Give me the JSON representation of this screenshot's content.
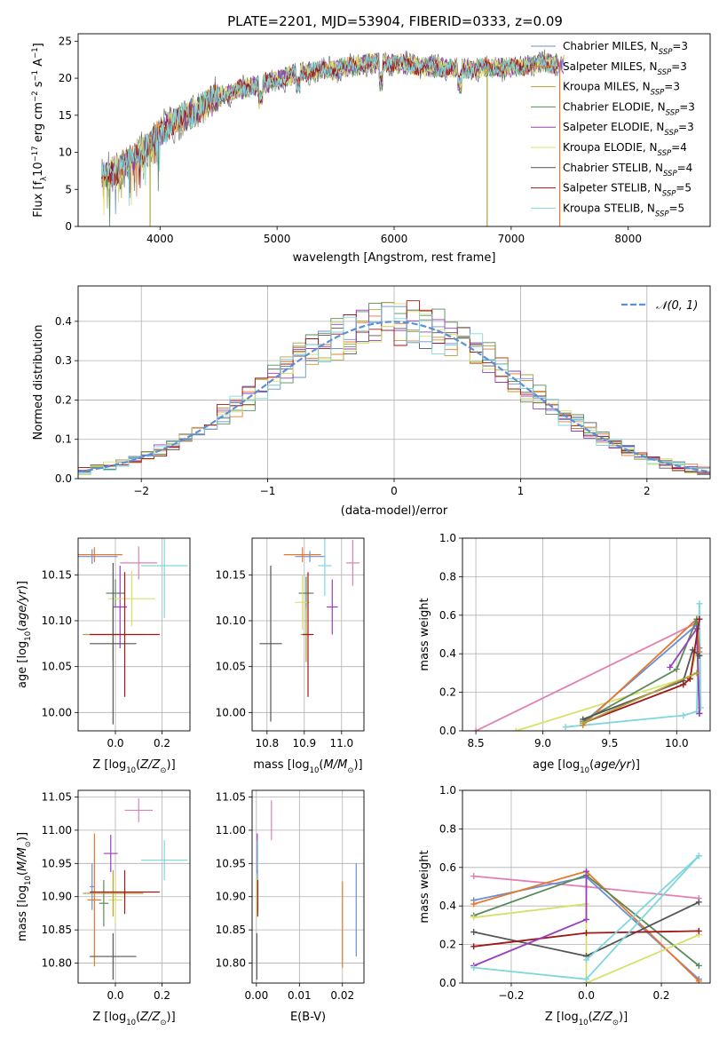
{
  "title": "PLATE=2201, MJD=53904, FIBERID=0333, z=0.09",
  "palette": [
    "#6b8fd6",
    "#e6782d",
    "#b3a13d",
    "#5a8a5a",
    "#9a3fb8",
    "#d8e06a",
    "#555555",
    "#a01818",
    "#7fd6dc",
    "#e27fb0"
  ],
  "chart_data": [
    {
      "id": "spectrum",
      "type": "line",
      "title": "PLATE=2201, MJD=53904, FIBERID=0333, z=0.09",
      "xlabel": "wavelength [Angstrom, rest frame]",
      "ylabel": "Flux [f_λ 10^-17 erg cm^-2 s^-1 A^-1]",
      "xlim": [
        3300,
        8700
      ],
      "ylim": [
        0,
        26
      ],
      "xticks": [
        4000,
        5000,
        6000,
        7000,
        8000
      ],
      "yticks": [
        0,
        5,
        10,
        15,
        20,
        25
      ],
      "grid": false,
      "legend_position": "top-right",
      "continuum": {
        "x": [
          3500,
          3700,
          3900,
          4100,
          4300,
          4500,
          4800,
          5000,
          5200,
          5500,
          5800,
          6000,
          6300,
          6600,
          7000,
          7300,
          7500
        ],
        "y": [
          6.5,
          8.5,
          11,
          14,
          15.5,
          17.5,
          19,
          19.7,
          20.8,
          21.2,
          22,
          22,
          21.5,
          21.3,
          21.5,
          22,
          22
        ]
      },
      "drops": [
        {
          "x": 3915,
          "series": 2
        },
        {
          "x": 6795,
          "series": 2
        },
        {
          "x": 7415,
          "series": 1
        }
      ],
      "series": [
        {
          "name": "Chabrier MILES, N",
          "sub": "SSP",
          "suffix": "=3",
          "color_index": 0
        },
        {
          "name": "Salpeter MILES, N",
          "sub": "SSP",
          "suffix": "=3",
          "color_index": 1
        },
        {
          "name": "Kroupa MILES, N",
          "sub": "SSP",
          "suffix": "=3",
          "color_index": 2
        },
        {
          "name": "Chabrier ELODIE, N",
          "sub": "SSP",
          "suffix": "=3",
          "color_index": 3
        },
        {
          "name": "Salpeter ELODIE, N",
          "sub": "SSP",
          "suffix": "=3",
          "color_index": 4
        },
        {
          "name": "Kroupa ELODIE, N",
          "sub": "SSP",
          "suffix": "=4",
          "color_index": 5
        },
        {
          "name": "Chabrier STELIB, N",
          "sub": "SSP",
          "suffix": "=4",
          "color_index": 6
        },
        {
          "name": "Salpeter STELIB, N",
          "sub": "SSP",
          "suffix": "=5",
          "color_index": 7
        },
        {
          "name": "Kroupa STELIB, N",
          "sub": "SSP",
          "suffix": "=5",
          "color_index": 8
        }
      ]
    },
    {
      "id": "residuals",
      "type": "histogram",
      "xlabel": "(data-model)/error",
      "ylabel": "Normed distribution",
      "xlim": [
        -2.5,
        2.5
      ],
      "ylim": [
        0,
        0.49
      ],
      "xticks": [
        -2,
        -1,
        0,
        1,
        2
      ],
      "yticks": [
        0.0,
        0.1,
        0.2,
        0.3,
        0.4
      ],
      "grid": true,
      "bin_width": 0.1,
      "series_count": 9,
      "reference_label": "𝒩(0, 1)",
      "reference_color": "#5b8fd6",
      "legend_position": "top-right"
    },
    {
      "id": "age-vs-Z",
      "type": "errorbar",
      "xlabel": "Z [log10(Z/Z⊙)]",
      "ylabel": "age [log10(age/yr)]",
      "xlim": [
        -0.16,
        0.32
      ],
      "ylim": [
        9.98,
        10.19
      ],
      "xticks": [
        0.0,
        0.2
      ],
      "yticks": [
        10.0,
        10.05,
        10.1,
        10.15
      ],
      "grid": true,
      "points": [
        {
          "x": -0.1,
          "xerr": 0.11,
          "y": 10.17,
          "yerr": 0.008,
          "color_index": 0
        },
        {
          "x": -0.09,
          "xerr": 0.12,
          "y": 10.172,
          "yerr": 0.008,
          "color_index": 1
        },
        {
          "x": 0.0,
          "xerr": 0.04,
          "y": 10.13,
          "yerr": 0.015,
          "color_index": 3
        },
        {
          "x": 0.02,
          "xerr": 0.03,
          "y": 10.115,
          "yerr": 0.045,
          "color_index": 4
        },
        {
          "x": 0.07,
          "xerr": 0.1,
          "y": 10.124,
          "yerr": 0.03,
          "color_index": 5
        },
        {
          "x": -0.01,
          "xerr": 0.13,
          "y": 10.085,
          "yerr": 0.03,
          "color_index": 2
        },
        {
          "x": -0.01,
          "xerr": 0.1,
          "y": 10.075,
          "yerr": 0.088,
          "color_index": 6
        },
        {
          "x": 0.04,
          "xerr": 0.15,
          "y": 10.085,
          "yerr": 0.068,
          "color_index": 7
        },
        {
          "x": 0.21,
          "xerr": 0.1,
          "y": 10.16,
          "yerr": 0.057,
          "color_index": 8
        },
        {
          "x": 0.1,
          "xerr": 0.08,
          "y": 10.163,
          "yerr": 0.018,
          "color_index": 9
        }
      ]
    },
    {
      "id": "age-vs-mass",
      "type": "errorbar",
      "xlabel": "mass [log10(M/M⊙)]",
      "ylabel": "",
      "xlim": [
        10.76,
        11.06
      ],
      "ylim": [
        9.98,
        10.19
      ],
      "xticks": [
        10.8,
        10.9,
        11.0
      ],
      "yticks": [
        10.0,
        10.05,
        10.1,
        10.15
      ],
      "grid": true,
      "points": [
        {
          "x": 10.915,
          "xerr": 0.04,
          "y": 10.17,
          "yerr": 0.006,
          "color_index": 0
        },
        {
          "x": 10.895,
          "xerr": 0.05,
          "y": 10.172,
          "yerr": 0.008,
          "color_index": 1
        },
        {
          "x": 10.905,
          "xerr": 0.02,
          "y": 10.13,
          "yerr": 0.018,
          "color_index": 3
        },
        {
          "x": 10.975,
          "xerr": 0.015,
          "y": 10.115,
          "yerr": 0.03,
          "color_index": 4
        },
        {
          "x": 10.895,
          "xerr": 0.02,
          "y": 10.12,
          "yerr": 0.03,
          "color_index": 5
        },
        {
          "x": 10.905,
          "xerr": 0.015,
          "y": 10.085,
          "yerr": 0.03,
          "color_index": 2
        },
        {
          "x": 10.81,
          "xerr": 0.03,
          "y": 10.075,
          "yerr": 0.085,
          "color_index": 6
        },
        {
          "x": 10.91,
          "xerr": 0.015,
          "y": 10.085,
          "yerr": 0.068,
          "color_index": 7
        },
        {
          "x": 10.955,
          "xerr": 0.018,
          "y": 10.16,
          "yerr": 0.033,
          "color_index": 8
        },
        {
          "x": 11.03,
          "xerr": 0.018,
          "y": 10.163,
          "yerr": 0.025,
          "color_index": 9
        }
      ]
    },
    {
      "id": "weight-vs-age",
      "type": "line",
      "xlabel": "age [log10(age/yr)]",
      "ylabel": "mass weight",
      "xlim": [
        8.4,
        10.25
      ],
      "ylim": [
        0,
        1.0
      ],
      "xticks": [
        8.5,
        9.0,
        9.5,
        10.0
      ],
      "yticks": [
        0.0,
        0.2,
        0.4,
        0.6,
        0.8,
        1.0
      ],
      "grid": true,
      "series": [
        {
          "color_index": 9,
          "x": [
            8.5,
            10.15
          ],
          "y": [
            0.0,
            0.56
          ]
        },
        {
          "color_index": 5,
          "x": [
            8.8,
            10.1,
            10.15
          ],
          "y": [
            0.0,
            0.28,
            0.42
          ]
        },
        {
          "color_index": 8,
          "x": [
            9.17,
            10.05,
            10.15,
            10.17,
            10.18
          ],
          "y": [
            0.02,
            0.08,
            0.1,
            0.66,
            0.12
          ]
        },
        {
          "color_index": 0,
          "x": [
            9.3,
            10.15,
            10.17
          ],
          "y": [
            0.04,
            0.55,
            0.43
          ]
        },
        {
          "color_index": 1,
          "x": [
            9.3,
            10.15,
            10.17
          ],
          "y": [
            0.03,
            0.58,
            0.41
          ]
        },
        {
          "color_index": 3,
          "x": [
            9.3,
            10.0,
            10.15,
            10.17
          ],
          "y": [
            0.05,
            0.32,
            0.58,
            0.09
          ]
        },
        {
          "color_index": 4,
          "x": [
            9.95,
            10.15,
            10.17
          ],
          "y": [
            0.33,
            0.53,
            0.09
          ]
        },
        {
          "color_index": 6,
          "x": [
            9.3,
            10.05,
            10.12,
            10.17
          ],
          "y": [
            0.06,
            0.26,
            0.42,
            0.39
          ]
        },
        {
          "color_index": 7,
          "x": [
            9.3,
            10.05,
            10.1,
            10.17
          ],
          "y": [
            0.04,
            0.24,
            0.27,
            0.58
          ]
        },
        {
          "color_index": 2,
          "x": [
            9.3,
            10.15
          ],
          "y": [
            0.04,
            0.3
          ]
        }
      ]
    },
    {
      "id": "mass-vs-Z",
      "type": "errorbar",
      "xlabel": "Z [log10(Z/Z⊙)]",
      "ylabel": "mass [log10(M/M⊙)]",
      "xlim": [
        -0.16,
        0.32
      ],
      "ylim": [
        10.77,
        11.06
      ],
      "xticks": [
        0.0,
        0.2
      ],
      "yticks": [
        10.8,
        10.85,
        10.9,
        10.95,
        11.0,
        11.05
      ],
      "grid": true,
      "points": [
        {
          "x": -0.1,
          "xerr": 0.01,
          "y": 10.915,
          "yerr": 0.035,
          "color_index": 0
        },
        {
          "x": -0.09,
          "xerr": 0.03,
          "y": 10.895,
          "yerr": 0.1,
          "color_index": 1
        },
        {
          "x": -0.05,
          "xerr": 0.02,
          "y": 10.89,
          "yerr": 0.035,
          "color_index": 3
        },
        {
          "x": -0.02,
          "xerr": 0.03,
          "y": 10.965,
          "yerr": 0.028,
          "color_index": 4
        },
        {
          "x": 0.0,
          "xerr": 0.03,
          "y": 10.895,
          "yerr": 0.035,
          "color_index": 5
        },
        {
          "x": -0.01,
          "xerr": 0.13,
          "y": 10.905,
          "yerr": 0.035,
          "color_index": 2
        },
        {
          "x": -0.01,
          "xerr": 0.1,
          "y": 10.81,
          "yerr": 0.035,
          "color_index": 6
        },
        {
          "x": 0.04,
          "xerr": 0.15,
          "y": 10.907,
          "yerr": 0.033,
          "color_index": 7
        },
        {
          "x": 0.21,
          "xerr": 0.1,
          "y": 10.955,
          "yerr": 0.03,
          "color_index": 8
        },
        {
          "x": 0.1,
          "xerr": 0.06,
          "y": 11.03,
          "yerr": 0.018,
          "color_index": 9
        }
      ]
    },
    {
      "id": "mass-vs-ebv",
      "type": "errorbar",
      "xlabel": "E(B-V)",
      "ylabel": "",
      "xlim": [
        -0.001,
        0.025
      ],
      "ylim": [
        10.77,
        11.06
      ],
      "xticks": [
        0.0,
        0.01,
        0.02
      ],
      "yticks": [
        10.8,
        10.85,
        10.9,
        10.95,
        11.0,
        11.05
      ],
      "grid": true,
      "points": [
        {
          "x": 0.0232,
          "xerr": 0.0,
          "y": 10.88,
          "yerr": 0.07,
          "color_index": 0
        },
        {
          "x": 0.02,
          "xerr": 0.0,
          "y": 10.858,
          "yerr": 0.065,
          "color_index": 1
        },
        {
          "x": 0.0003,
          "xerr": 0.0,
          "y": 10.905,
          "yerr": 0.03,
          "color_index": 3
        },
        {
          "x": 0.0002,
          "xerr": 0.0,
          "y": 10.965,
          "yerr": 0.03,
          "color_index": 4
        },
        {
          "x": 0.0001,
          "xerr": 0.0,
          "y": 10.9,
          "yerr": 0.03,
          "color_index": 5
        },
        {
          "x": 0.0001,
          "xerr": 0.0,
          "y": 10.81,
          "yerr": 0.035,
          "color_index": 6
        },
        {
          "x": 0.0003,
          "xerr": 0.0,
          "y": 10.905,
          "yerr": 0.035,
          "color_index": 7
        },
        {
          "x": 0.0003,
          "xerr": 0.0,
          "y": 10.955,
          "yerr": 0.03,
          "color_index": 8
        },
        {
          "x": 0.0035,
          "xerr": 0.0,
          "y": 11.015,
          "yerr": 0.03,
          "color_index": 9
        }
      ]
    },
    {
      "id": "weight-vs-Z",
      "type": "line",
      "xlabel": "Z [log10(Z/Z⊙)]",
      "ylabel": "mass weight",
      "xlim": [
        -0.33,
        0.33
      ],
      "ylim": [
        0,
        1.0
      ],
      "xticks": [
        -0.2,
        0.0,
        0.2
      ],
      "yticks": [
        0.0,
        0.2,
        0.4,
        0.6,
        0.8,
        1.0
      ],
      "grid": true,
      "series": [
        {
          "color_index": 9,
          "x": [
            -0.3,
            0.0,
            0.3
          ],
          "y": [
            0.555,
            0.5,
            0.44
          ]
        },
        {
          "color_index": 0,
          "x": [
            -0.3,
            0.0,
            0.3
          ],
          "y": [
            0.43,
            0.55,
            0.02
          ]
        },
        {
          "color_index": 1,
          "x": [
            -0.3,
            0.0,
            0.3
          ],
          "y": [
            0.41,
            0.58,
            0.01
          ]
        },
        {
          "color_index": 3,
          "x": [
            -0.3,
            0.0,
            0.3
          ],
          "y": [
            0.35,
            0.56,
            0.09
          ]
        },
        {
          "color_index": 5,
          "x": [
            -0.3,
            0.0,
            0.0,
            0.3
          ],
          "y": [
            0.34,
            0.41,
            0.0,
            0.25
          ]
        },
        {
          "color_index": 6,
          "x": [
            -0.3,
            0.0,
            0.3
          ],
          "y": [
            0.265,
            0.14,
            0.42
          ]
        },
        {
          "color_index": 7,
          "x": [
            -0.3,
            0.0,
            0.3
          ],
          "y": [
            0.19,
            0.26,
            0.27
          ]
        },
        {
          "color_index": 4,
          "x": [
            -0.3,
            0.0,
            0.0
          ],
          "y": [
            0.09,
            0.33,
            0.58
          ]
        },
        {
          "color_index": 8,
          "x": [
            -0.3,
            0.0,
            0.3
          ],
          "y": [
            0.08,
            0.02,
            0.66
          ]
        },
        {
          "color_index": 8,
          "x": [
            0.0,
            0.3
          ],
          "y": [
            0.12,
            0.66
          ]
        }
      ]
    }
  ]
}
